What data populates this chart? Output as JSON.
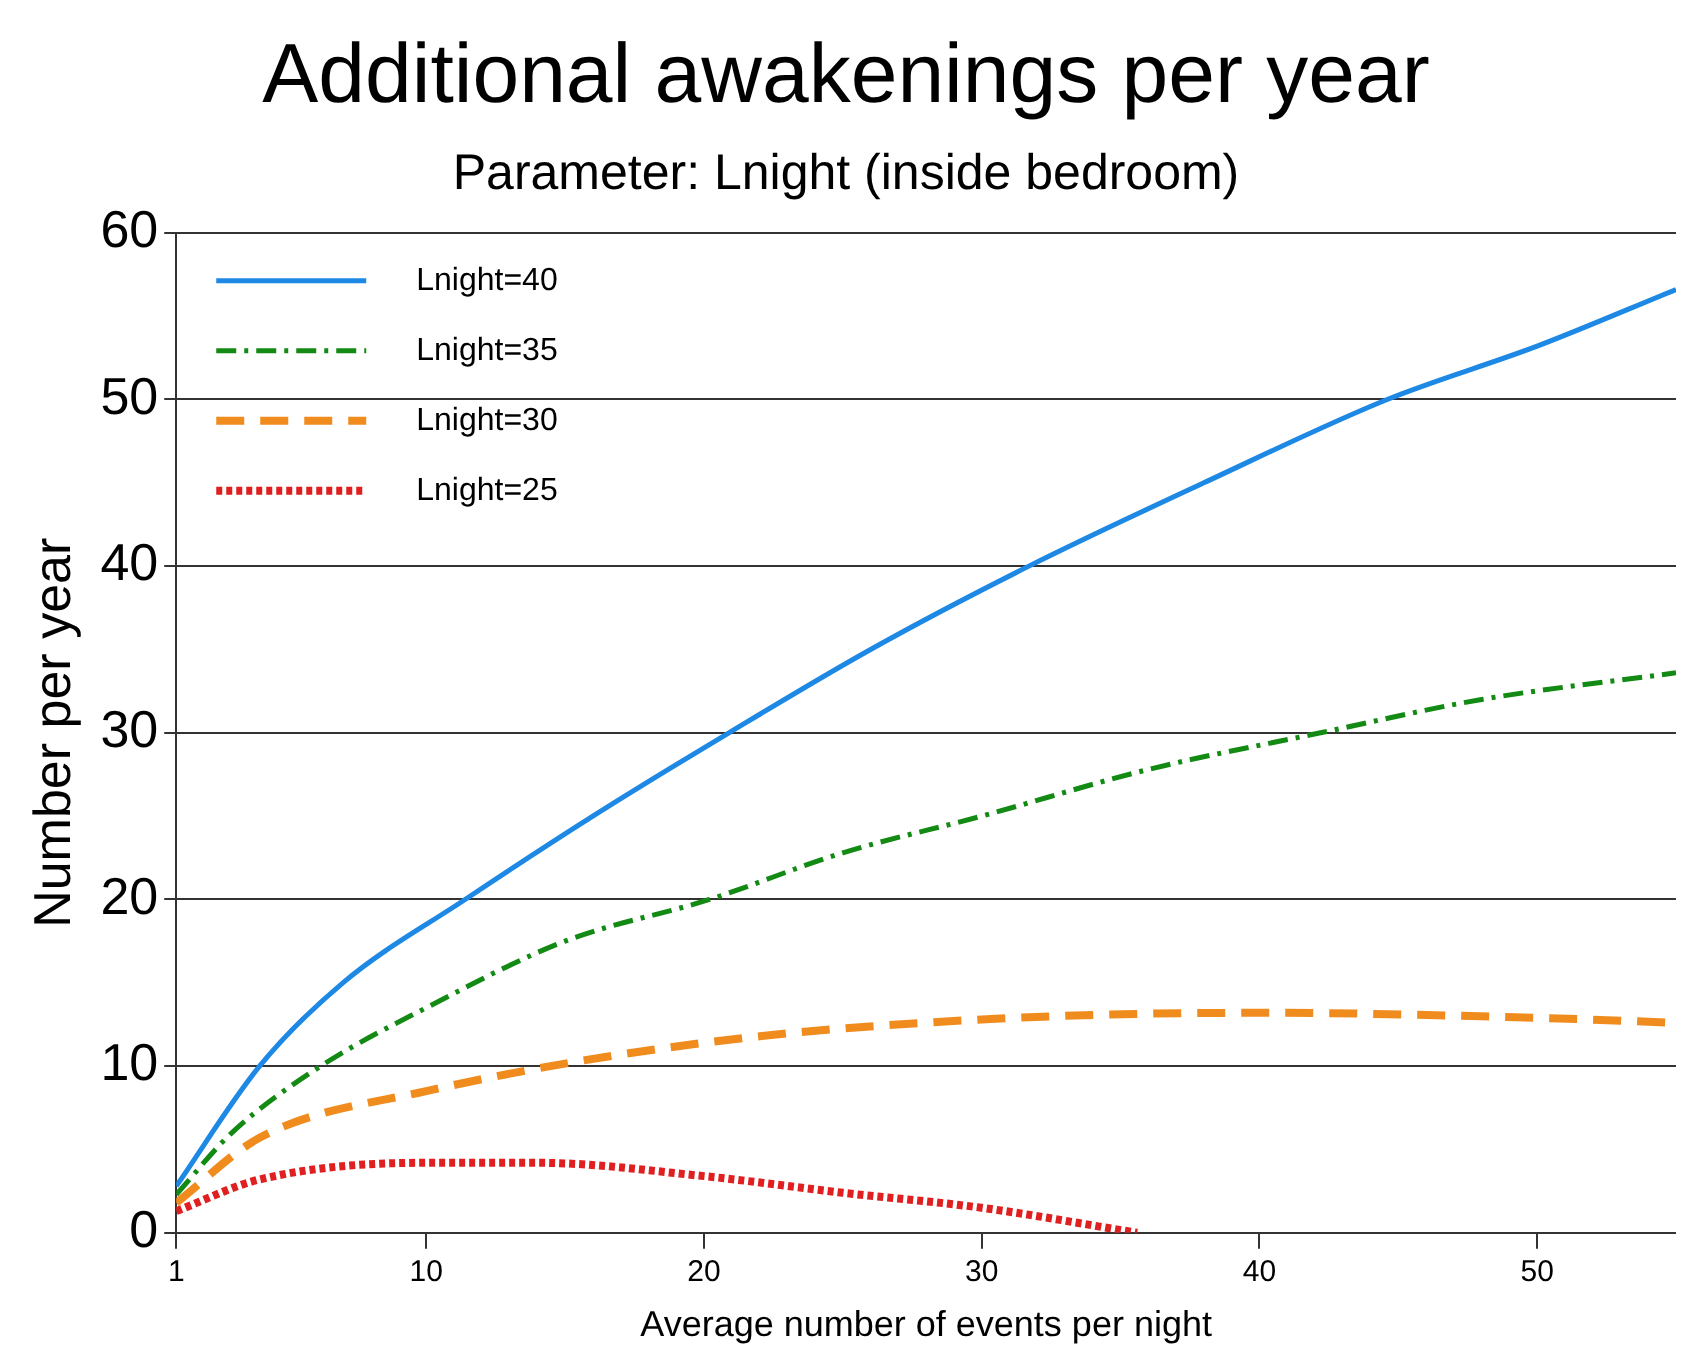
{
  "chart_data": {
    "type": "line",
    "title": "Additional awakenings per year",
    "subtitle": "Parameter: Lnight (inside bedroom)",
    "xlabel": "Average number of events per night",
    "ylabel": "Number per year",
    "xlim": [
      1,
      55
    ],
    "xticks": [
      1,
      10,
      20,
      30,
      40,
      50
    ],
    "ylim": [
      0,
      60
    ],
    "yticks": [
      0,
      10,
      20,
      30,
      40,
      50,
      60
    ],
    "grid": "y",
    "legend": "top left",
    "marker": "none",
    "series": [
      {
        "name": "Lnight=40",
        "color": "#1e88e5",
        "line_style": "solid",
        "x": [
          1,
          4,
          7,
          11.4,
          16,
          20.9,
          26,
          31.7,
          38,
          44.6,
          50,
          55
        ],
        "values": [
          2.8,
          10,
          15,
          20,
          25,
          30,
          35,
          40,
          45,
          50,
          53.2,
          56.6
        ]
      },
      {
        "name": "Lnight=35",
        "color": "#138a13",
        "line_style": "dashdot",
        "x": [
          1,
          3,
          6.2,
          10,
          15,
          20.2,
          25,
          30,
          36,
          42.2,
          48,
          55
        ],
        "values": [
          2.3,
          6,
          10,
          13.5,
          17.5,
          20,
          22.8,
          25,
          27.8,
          30,
          32,
          33.6
        ]
      },
      {
        "name": "Lnight=30",
        "color": "#f08c1e",
        "line_style": "dashed",
        "x": [
          1,
          4,
          10,
          20,
          30,
          40,
          50,
          55
        ],
        "values": [
          1.8,
          5.7,
          8.5,
          11.4,
          12.8,
          13.2,
          12.9,
          12.6
        ]
      },
      {
        "name": "Lnight=25",
        "color": "#e02020",
        "line_style": "dotted",
        "x": [
          1,
          4,
          10,
          14,
          20,
          25,
          30,
          35.6
        ],
        "values": [
          1.3,
          3.2,
          4.2,
          4.2,
          3.4,
          2.4,
          1.5,
          0
        ]
      }
    ]
  }
}
